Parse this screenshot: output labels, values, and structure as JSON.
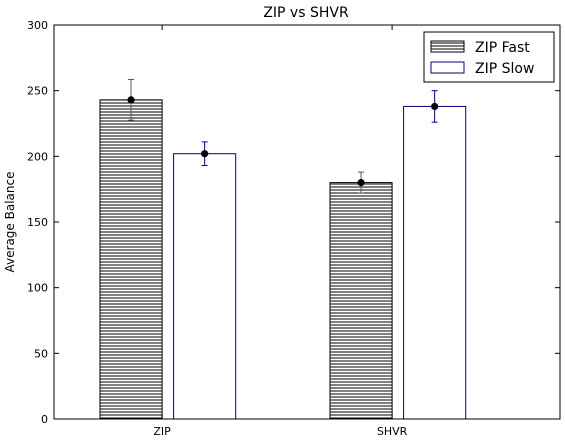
{
  "chart_data": {
    "type": "bar",
    "title": "ZIP vs SHVR",
    "xlabel": "",
    "ylabel": "Average Balance",
    "ylim": [
      0,
      300
    ],
    "yticks": [
      0,
      50,
      100,
      150,
      200,
      250,
      300
    ],
    "categories": [
      "ZIP",
      "SHVR"
    ],
    "series": [
      {
        "name": "ZIP Fast",
        "values": [
          243,
          180
        ],
        "error": [
          15.5,
          8
        ],
        "fill": "hatch-horizontal",
        "color": "#000000",
        "errorColor": "#555555"
      },
      {
        "name": "ZIP Slow",
        "values": [
          202,
          238
        ],
        "error": [
          9,
          12
        ],
        "fill": "#ffffff",
        "color": "#000080",
        "errorColor": "#000080"
      }
    ],
    "legend_position": "top-right",
    "grid": false
  }
}
